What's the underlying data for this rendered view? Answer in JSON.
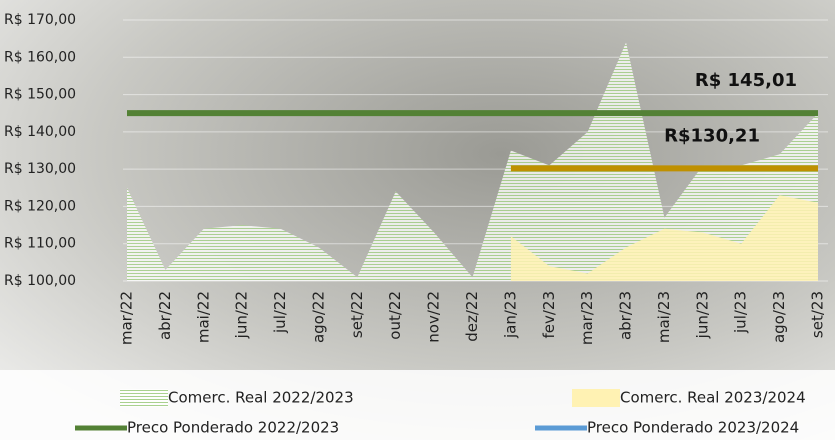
{
  "chart_data": {
    "type": "area",
    "categories": [
      "mar/22",
      "abr/22",
      "mai/22",
      "jun/22",
      "jul/22",
      "ago/22",
      "set/22",
      "out/22",
      "nov/22",
      "dez/22",
      "jan/23",
      "fev/23",
      "mar/23",
      "abr/23",
      "mai/23",
      "jun/23",
      "jul/23",
      "ago/23",
      "set/23"
    ],
    "series": [
      {
        "name": "Comerc. Real 2022/2023",
        "kind": "area",
        "color": "#a9d18e",
        "values": [
          125,
          103,
          114,
          115,
          114,
          109,
          101,
          124,
          113,
          101,
          135,
          131,
          140,
          164,
          117,
          131,
          131,
          134,
          145
        ]
      },
      {
        "name": "Comerc. Real 2023/2024",
        "kind": "area",
        "color": "#fff2b3",
        "values": [
          null,
          null,
          null,
          null,
          null,
          null,
          null,
          null,
          null,
          null,
          112,
          104,
          102,
          109,
          114,
          113,
          110,
          123,
          121
        ]
      },
      {
        "name": "Preco Ponderado 2022/2023",
        "kind": "line",
        "color": "#538135",
        "values": [
          145.01,
          145.01,
          145.01,
          145.01,
          145.01,
          145.01,
          145.01,
          145.01,
          145.01,
          145.01,
          145.01,
          145.01,
          145.01,
          145.01,
          145.01,
          145.01,
          145.01,
          145.01,
          145.01
        ]
      },
      {
        "name": "Preco Ponderado 2023/2024",
        "kind": "line",
        "color": "#5b9bd5",
        "line_color": "#bf9000",
        "values": [
          null,
          null,
          null,
          null,
          null,
          null,
          null,
          null,
          null,
          null,
          130.21,
          130.21,
          130.21,
          130.21,
          130.21,
          130.21,
          130.21,
          130.21,
          130.21
        ]
      }
    ],
    "annotations": [
      {
        "text": "R$ 145,01",
        "value": 145.01
      },
      {
        "text": "R$130,21",
        "value": 130.21
      }
    ],
    "ylim": [
      100,
      170
    ],
    "yticks": [
      {
        "value": 100,
        "label": "R$ 100,00"
      },
      {
        "value": 110,
        "label": "R$ 110,00"
      },
      {
        "value": 120,
        "label": "R$ 120,00"
      },
      {
        "value": 130,
        "label": "R$ 130,00"
      },
      {
        "value": 140,
        "label": "R$ 140,00"
      },
      {
        "value": 150,
        "label": "R$ 150,00"
      },
      {
        "value": 160,
        "label": "R$ 160,00"
      },
      {
        "value": 170,
        "label": "R$ 170,00"
      }
    ],
    "grid": true
  }
}
